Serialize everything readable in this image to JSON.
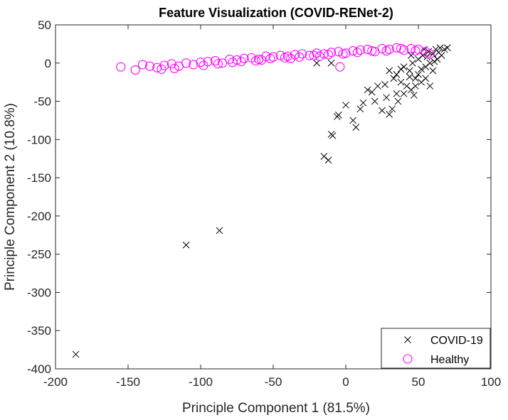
{
  "chart_data": {
    "type": "scatter",
    "title": "Feature Visualization (COVID-RENet-2)",
    "xlabel": "Principle Component 1 (81.5%)",
    "ylabel": "Principle Component 2 (10.8%)",
    "xlim": [
      -200,
      100
    ],
    "ylim": [
      -400,
      50
    ],
    "xticks": [
      -200,
      -150,
      -100,
      -50,
      0,
      50,
      100
    ],
    "yticks": [
      50,
      0,
      -50,
      -100,
      -150,
      -200,
      -250,
      -300,
      -350,
      -400
    ],
    "grid": false,
    "legend_position": "bottom-right",
    "series": [
      {
        "name": "COVID-19",
        "marker": "x",
        "color": "#000000",
        "points": [
          [
            -186,
            -381
          ],
          [
            -110,
            -238
          ],
          [
            -87,
            -219
          ],
          [
            -15,
            -122
          ],
          [
            -12,
            -127
          ],
          [
            -10,
            -93
          ],
          [
            -9,
            -95
          ],
          [
            -6,
            -70
          ],
          [
            -5,
            -68
          ],
          [
            0,
            -55
          ],
          [
            5,
            -75
          ],
          [
            7,
            -84
          ],
          [
            10,
            -60
          ],
          [
            12,
            -52
          ],
          [
            15,
            -35
          ],
          [
            18,
            -38
          ],
          [
            20,
            -50
          ],
          [
            22,
            -30
          ],
          [
            25,
            -62
          ],
          [
            28,
            -45
          ],
          [
            30,
            -67
          ],
          [
            32,
            -60
          ],
          [
            35,
            -15
          ],
          [
            35,
            -40
          ],
          [
            38,
            -25
          ],
          [
            40,
            -5
          ],
          [
            42,
            -30
          ],
          [
            44,
            -10
          ],
          [
            45,
            -35
          ],
          [
            46,
            0
          ],
          [
            48,
            -20
          ],
          [
            50,
            5
          ],
          [
            50,
            -15
          ],
          [
            52,
            -25
          ],
          [
            53,
            10
          ],
          [
            55,
            -5
          ],
          [
            55,
            -20
          ],
          [
            57,
            15
          ],
          [
            58,
            0
          ],
          [
            60,
            12
          ],
          [
            60,
            -10
          ],
          [
            62,
            18
          ],
          [
            63,
            5
          ],
          [
            65,
            20
          ],
          [
            66,
            10
          ],
          [
            68,
            18
          ],
          [
            70,
            20
          ],
          [
            -20,
            0
          ],
          [
            -10,
            0
          ],
          [
            30,
            -10
          ],
          [
            48,
            -30
          ],
          [
            44,
            -18
          ],
          [
            52,
            -8
          ],
          [
            56,
            8
          ],
          [
            40,
            -40
          ],
          [
            36,
            -50
          ],
          [
            47,
            -42
          ],
          [
            58,
            -30
          ],
          [
            61,
            2
          ],
          [
            64,
            14
          ],
          [
            45,
            10
          ],
          [
            38,
            -8
          ],
          [
            33,
            -20
          ],
          [
            27,
            -28
          ],
          [
            54,
            18
          ]
        ]
      },
      {
        "name": "Healthy",
        "marker": "o",
        "color": "#ff00ff",
        "points": [
          [
            -155,
            -5
          ],
          [
            -145,
            -9
          ],
          [
            -140,
            -2
          ],
          [
            -135,
            -4
          ],
          [
            -130,
            -6
          ],
          [
            -127,
            -8
          ],
          [
            -125,
            -3
          ],
          [
            -120,
            -1
          ],
          [
            -115,
            -4
          ],
          [
            -110,
            0
          ],
          [
            -105,
            -2
          ],
          [
            -100,
            1
          ],
          [
            -95,
            2
          ],
          [
            -90,
            3
          ],
          [
            -85,
            0
          ],
          [
            -80,
            5
          ],
          [
            -75,
            4
          ],
          [
            -70,
            6
          ],
          [
            -65,
            7
          ],
          [
            -60,
            5
          ],
          [
            -55,
            9
          ],
          [
            -50,
            8
          ],
          [
            -45,
            10
          ],
          [
            -40,
            9
          ],
          [
            -35,
            11
          ],
          [
            -30,
            12
          ],
          [
            -25,
            10
          ],
          [
            -20,
            13
          ],
          [
            -15,
            12
          ],
          [
            -10,
            14
          ],
          [
            -5,
            15
          ],
          [
            0,
            13
          ],
          [
            5,
            16
          ],
          [
            10,
            17
          ],
          [
            15,
            18
          ],
          [
            20,
            15
          ],
          [
            25,
            19
          ],
          [
            30,
            18
          ],
          [
            35,
            20
          ],
          [
            40,
            17
          ],
          [
            45,
            19
          ],
          [
            50,
            18
          ],
          [
            55,
            15
          ],
          [
            58,
            12
          ],
          [
            -4,
            -5
          ],
          [
            -88,
            -1
          ],
          [
            -72,
            2
          ],
          [
            -62,
            3
          ],
          [
            -52,
            6
          ],
          [
            -42,
            7
          ],
          [
            -32,
            8
          ],
          [
            -22,
            10
          ],
          [
            -12,
            11
          ],
          [
            -2,
            12
          ],
          [
            8,
            14
          ],
          [
            18,
            16
          ],
          [
            28,
            16
          ],
          [
            38,
            19
          ],
          [
            48,
            16
          ],
          [
            -118,
            -7
          ],
          [
            -98,
            -3
          ],
          [
            -78,
            1
          ],
          [
            -58,
            4
          ],
          [
            -38,
            6
          ],
          [
            -18,
            9
          ]
        ]
      }
    ]
  }
}
